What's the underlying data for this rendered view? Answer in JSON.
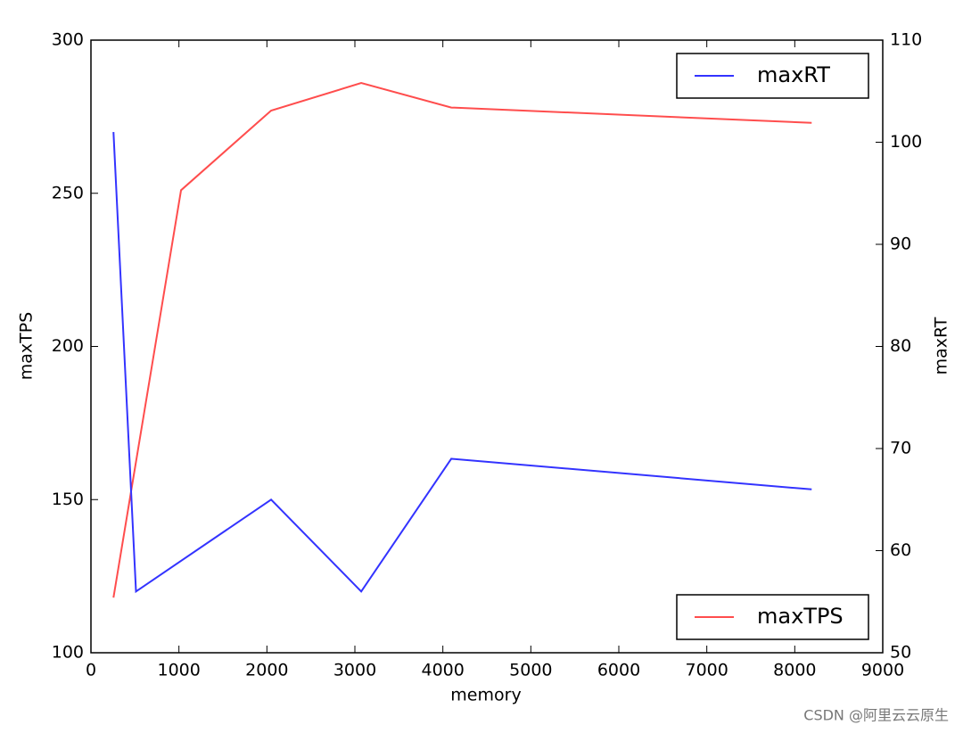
{
  "chart_data": {
    "type": "line",
    "xlabel": "memory",
    "ylabel": "maxTPS",
    "y2label": "maxRT",
    "xlim": [
      0,
      9000
    ],
    "xticks": [
      0,
      1000,
      2000,
      3000,
      4000,
      5000,
      6000,
      7000,
      8000,
      9000
    ],
    "ylim": [
      100,
      300
    ],
    "yticks": [
      100,
      150,
      200,
      250,
      300
    ],
    "y2lim": [
      50,
      110
    ],
    "y2ticks": [
      50,
      60,
      70,
      80,
      90,
      100,
      110
    ],
    "series": [
      {
        "name": "maxTPS",
        "color": "#ff4d4d",
        "x": [
          256,
          1024,
          2048,
          3072,
          4096,
          8192
        ],
        "values": [
          118,
          251,
          277,
          286,
          278,
          273
        ],
        "legend": "lower right"
      },
      {
        "name": "maxRT",
        "color": "#3333ff",
        "axis": "y2",
        "x": [
          256,
          512,
          2048,
          3072,
          4096,
          8192
        ],
        "values": [
          101,
          56,
          65,
          56,
          69,
          66
        ],
        "legend": "upper right"
      }
    ],
    "watermark": "CSDN @阿里云云原生"
  }
}
